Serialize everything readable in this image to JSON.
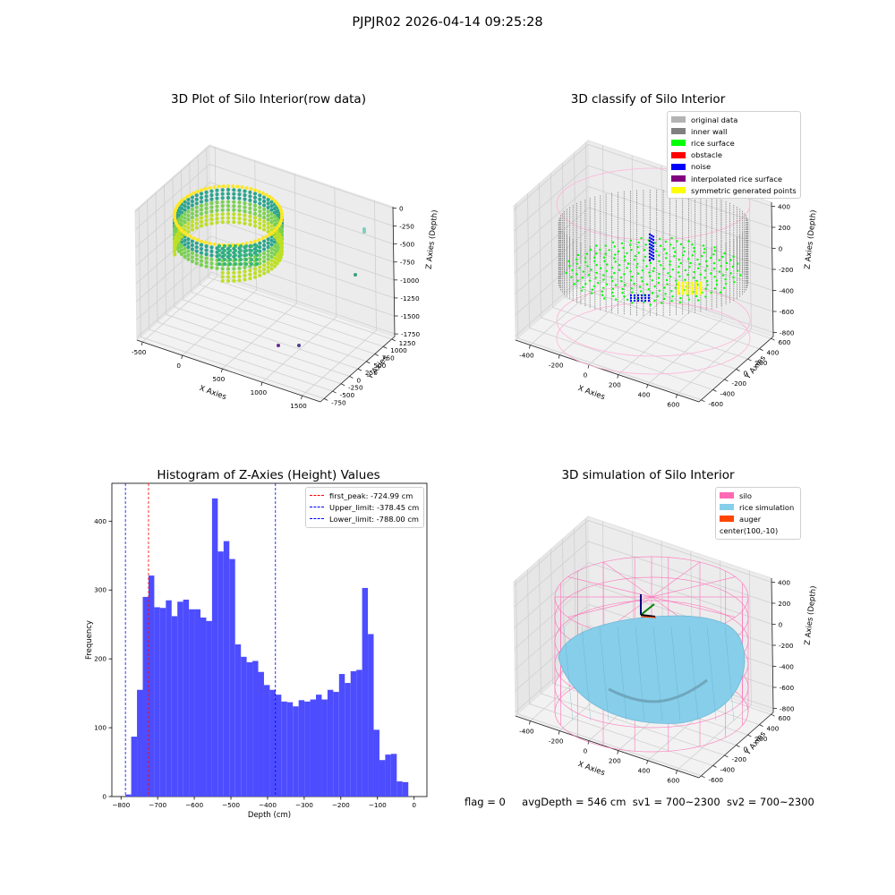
{
  "figure_title": "PJPJR02 2026-04-14 09:25:28",
  "footer": {
    "flag": "flag = 0",
    "avg_depth": "avgDepth = 546 cm",
    "sv1": "sv1 = 700~2300",
    "sv2": "sv2 = 700~2300"
  },
  "colors": {
    "hist_bar": "#4d4dff",
    "first_peak_line": "#ff0000",
    "limit_lines": "#0000ff",
    "silo_wire": "#ff69b4",
    "rice_simulation": "#87ceeb",
    "auger": "#ff4500"
  },
  "chart_data": [
    {
      "type": "scatter",
      "projection": "3d",
      "title": "3D Plot of Silo Interior(row data)",
      "xlabel": "X Axies",
      "ylabel": "Y Axies",
      "zlabel": "Z Axies (Depth)",
      "x_ticks": [
        "-500",
        "0",
        "500",
        "1000",
        "1500"
      ],
      "y_ticks": [
        "-750",
        "-500",
        "-250",
        "0",
        "250",
        "500",
        "750",
        "1000",
        "1250"
      ],
      "z_ticks": [
        "0",
        "-250",
        "-500",
        "-750",
        "-1000",
        "-1250",
        "-1500",
        "-1750"
      ],
      "xlim": [
        -700,
        1900
      ],
      "ylim": [
        -750,
        1350
      ],
      "zlim": [
        -1850,
        100
      ],
      "colormap": "viridis",
      "grid": true,
      "outlier_points": [
        {
          "x": 1550,
          "y": 900,
          "z": -350
        },
        {
          "x": 1600,
          "y": 950,
          "z": -1100
        },
        {
          "x": 1100,
          "y": -700,
          "z": -1300
        },
        {
          "x": 1250,
          "y": -700,
          "z": -1300
        }
      ]
    },
    {
      "type": "scatter",
      "projection": "3d",
      "title": "3D classify of Silo Interior",
      "xlabel": "X Axies",
      "ylabel": "Y Axies",
      "zlabel": "Z Axies (Depth)",
      "x_ticks": [
        "-400",
        "-200",
        "0",
        "200",
        "400",
        "600"
      ],
      "y_ticks": [
        "-600",
        "-400",
        "-200",
        "0",
        "200",
        "400",
        "600"
      ],
      "z_ticks": [
        "400",
        "200",
        "0",
        "-200",
        "-400",
        "-600",
        "-800"
      ],
      "xlim": [
        -500,
        700
      ],
      "ylim": [
        -650,
        650
      ],
      "zlim": [
        -900,
        450
      ],
      "legend_position": "upper-right",
      "grid": true,
      "legend": [
        {
          "label": "original data",
          "color": "#b3b3b3"
        },
        {
          "label": "inner wall",
          "color": "#808080"
        },
        {
          "label": "rice surface",
          "color": "#00ff00"
        },
        {
          "label": "obstacle",
          "color": "#ff0000"
        },
        {
          "label": "noise",
          "color": "#0000ff"
        },
        {
          "label": "interpolated rice surface",
          "color": "#800080"
        },
        {
          "label": "symmetric generated points",
          "color": "#ffff00"
        }
      ]
    },
    {
      "type": "bar",
      "title": "Histogram of Z-Axies (Height) Values",
      "xlabel": "Depth (cm)",
      "ylabel": "Frequency",
      "xlim": [
        -825,
        35
      ],
      "ylim": [
        0,
        455
      ],
      "x_ticks": [
        -800,
        -700,
        -600,
        -500,
        -400,
        -300,
        -200,
        -100,
        0
      ],
      "y_ticks": [
        0,
        100,
        200,
        300,
        400
      ],
      "bin_start": -788,
      "bin_width": 15.76,
      "values": [
        3,
        87,
        155,
        290,
        321,
        275,
        274,
        285,
        262,
        283,
        286,
        272,
        272,
        260,
        255,
        433,
        356,
        371,
        345,
        221,
        203,
        195,
        197,
        181,
        162,
        155,
        148,
        138,
        137,
        131,
        140,
        138,
        141,
        148,
        141,
        155,
        152,
        178,
        165,
        182,
        184,
        303,
        236,
        97,
        53,
        61,
        62,
        22,
        21
      ],
      "legend_position": "upper-right",
      "grid": false,
      "vlines": [
        {
          "label": "first_peak: -724.99 cm",
          "x": -724.99,
          "color": "#ff0000"
        },
        {
          "label": "Upper_limit: -378.45 cm",
          "x": -378.45,
          "color": "#0000ff"
        },
        {
          "label": "Lower_limit: -788.00 cm",
          "x": -788.0,
          "color": "#0000ff"
        }
      ]
    },
    {
      "type": "surface",
      "projection": "3d",
      "title": "3D simulation of Silo Interior",
      "xlabel": "X Axies",
      "ylabel": "Y Axies",
      "zlabel": "Z Axies (Depth)",
      "x_ticks": [
        "-400",
        "-200",
        "0",
        "200",
        "400",
        "600"
      ],
      "y_ticks": [
        "-600",
        "-400",
        "-200",
        "0",
        "200",
        "400",
        "600"
      ],
      "z_ticks": [
        "400",
        "200",
        "0",
        "-200",
        "-400",
        "-600",
        "-800"
      ],
      "xlim": [
        -500,
        700
      ],
      "ylim": [
        -650,
        650
      ],
      "zlim": [
        -900,
        450
      ],
      "legend_position": "upper-right",
      "grid": true,
      "legend": [
        {
          "label": "silo",
          "color": "#ff69b4"
        },
        {
          "label": "rice simulation",
          "color": "#87ceeb"
        },
        {
          "label": "auger",
          "color": "#ff4500"
        },
        {
          "label": "center(100,-10)",
          "color": ""
        }
      ]
    }
  ]
}
